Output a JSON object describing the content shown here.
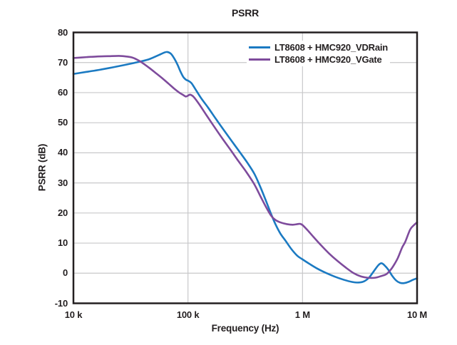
{
  "colors": {
    "series_blue": "#1b7ac2",
    "series_purple": "#7e4b9c",
    "axis": "#231f20",
    "grid": "#c8c8ca",
    "background": "#ffffff",
    "text": "#231f20"
  },
  "chart_data": {
    "type": "line",
    "title": "PSRR",
    "xlabel": "Frequency (Hz)",
    "ylabel": "PSRR (dB)",
    "x_scale": "log",
    "xlim": [
      10000,
      10000000
    ],
    "ylim": [
      -10,
      80
    ],
    "grid": true,
    "legend_position": "upper-right-inside",
    "x_ticks": [
      {
        "value": 10000,
        "label": "10 k"
      },
      {
        "value": 100000,
        "label": "100 k"
      },
      {
        "value": 1000000,
        "label": "1 M"
      },
      {
        "value": 10000000,
        "label": "10 M"
      }
    ],
    "y_ticks": [
      {
        "value": 80,
        "label": "80"
      },
      {
        "value": 70,
        "label": "70"
      },
      {
        "value": 60,
        "label": "60"
      },
      {
        "value": 50,
        "label": "50"
      },
      {
        "value": 40,
        "label": "40"
      },
      {
        "value": 30,
        "label": "30"
      },
      {
        "value": 20,
        "label": "20"
      },
      {
        "value": 10,
        "label": "10"
      },
      {
        "value": 0,
        "label": "0"
      },
      {
        "value": -10,
        "label": "-10"
      }
    ],
    "series": [
      {
        "name": "LT8608 + HMC920_VDRain",
        "color": "#1b7ac2",
        "points": [
          [
            10000,
            66.2
          ],
          [
            13000,
            66.9
          ],
          [
            17000,
            67.6
          ],
          [
            22000,
            68.4
          ],
          [
            28000,
            69.2
          ],
          [
            35000,
            70.0
          ],
          [
            45000,
            71.0
          ],
          [
            55000,
            72.4
          ],
          [
            62000,
            73.3
          ],
          [
            66000,
            73.5
          ],
          [
            71000,
            72.9
          ],
          [
            76000,
            71.3
          ],
          [
            81000,
            69.3
          ],
          [
            86000,
            67.0
          ],
          [
            91000,
            65.2
          ],
          [
            96000,
            64.3
          ],
          [
            101000,
            63.9
          ],
          [
            107000,
            63.2
          ],
          [
            115000,
            61.4
          ],
          [
            130000,
            58.2
          ],
          [
            150000,
            55.0
          ],
          [
            175000,
            51.3
          ],
          [
            205000,
            47.6
          ],
          [
            240000,
            44.0
          ],
          [
            280000,
            40.5
          ],
          [
            330000,
            36.7
          ],
          [
            380000,
            33.0
          ],
          [
            430000,
            28.5
          ],
          [
            480000,
            24.0
          ],
          [
            530000,
            19.8
          ],
          [
            580000,
            16.3
          ],
          [
            640000,
            13.2
          ],
          [
            710000,
            10.8
          ],
          [
            800000,
            8.0
          ],
          [
            900000,
            5.8
          ],
          [
            1000000,
            4.6
          ],
          [
            1150000,
            3.1
          ],
          [
            1350000,
            1.5
          ],
          [
            1600000,
            0.1
          ],
          [
            1900000,
            -1.1
          ],
          [
            2300000,
            -2.2
          ],
          [
            2700000,
            -2.9
          ],
          [
            3000000,
            -3.1
          ],
          [
            3400000,
            -2.8
          ],
          [
            3800000,
            -1.5
          ],
          [
            4200000,
            0.7
          ],
          [
            4600000,
            2.7
          ],
          [
            4900000,
            3.3
          ],
          [
            5200000,
            2.6
          ],
          [
            5600000,
            1.2
          ],
          [
            6100000,
            -1.0
          ],
          [
            6600000,
            -2.5
          ],
          [
            7100000,
            -3.2
          ],
          [
            7700000,
            -3.3
          ],
          [
            8400000,
            -2.9
          ],
          [
            9200000,
            -2.2
          ],
          [
            10000000,
            -1.7
          ]
        ]
      },
      {
        "name": "LT8608 + HMC920_VGate",
        "color": "#7e4b9c",
        "points": [
          [
            10000,
            71.5
          ],
          [
            13000,
            71.8
          ],
          [
            16000,
            72.0
          ],
          [
            20000,
            72.1
          ],
          [
            25000,
            72.2
          ],
          [
            29000,
            72.0
          ],
          [
            33000,
            71.6
          ],
          [
            37000,
            70.7
          ],
          [
            41000,
            69.6
          ],
          [
            46000,
            68.2
          ],
          [
            52000,
            66.6
          ],
          [
            60000,
            64.7
          ],
          [
            68000,
            62.9
          ],
          [
            76000,
            61.3
          ],
          [
            84000,
            60.0
          ],
          [
            91000,
            59.2
          ],
          [
            96000,
            58.7
          ],
          [
            101000,
            59.1
          ],
          [
            105000,
            59.3
          ],
          [
            112000,
            58.6
          ],
          [
            125000,
            56.2
          ],
          [
            145000,
            52.5
          ],
          [
            170000,
            48.6
          ],
          [
            200000,
            44.7
          ],
          [
            235000,
            41.0
          ],
          [
            275000,
            37.3
          ],
          [
            325000,
            33.5
          ],
          [
            380000,
            29.5
          ],
          [
            430000,
            25.5
          ],
          [
            480000,
            22.0
          ],
          [
            530000,
            19.2
          ],
          [
            580000,
            17.7
          ],
          [
            650000,
            16.8
          ],
          [
            730000,
            16.3
          ],
          [
            820000,
            16.1
          ],
          [
            900000,
            16.3
          ],
          [
            950000,
            16.4
          ],
          [
            1000000,
            16.0
          ],
          [
            1100000,
            14.4
          ],
          [
            1250000,
            12.0
          ],
          [
            1450000,
            9.3
          ],
          [
            1700000,
            6.6
          ],
          [
            2000000,
            4.2
          ],
          [
            2400000,
            1.8
          ],
          [
            2800000,
            0.0
          ],
          [
            3200000,
            -1.0
          ],
          [
            3700000,
            -1.5
          ],
          [
            4300000,
            -1.5
          ],
          [
            4900000,
            -0.9
          ],
          [
            5400000,
            -0.3
          ],
          [
            5900000,
            1.2
          ],
          [
            6300000,
            2.8
          ],
          [
            6800000,
            5.1
          ],
          [
            7400000,
            8.5
          ],
          [
            7900000,
            10.5
          ],
          [
            8700000,
            14.5
          ],
          [
            9400000,
            16.0
          ],
          [
            10000000,
            16.9
          ]
        ]
      }
    ]
  }
}
